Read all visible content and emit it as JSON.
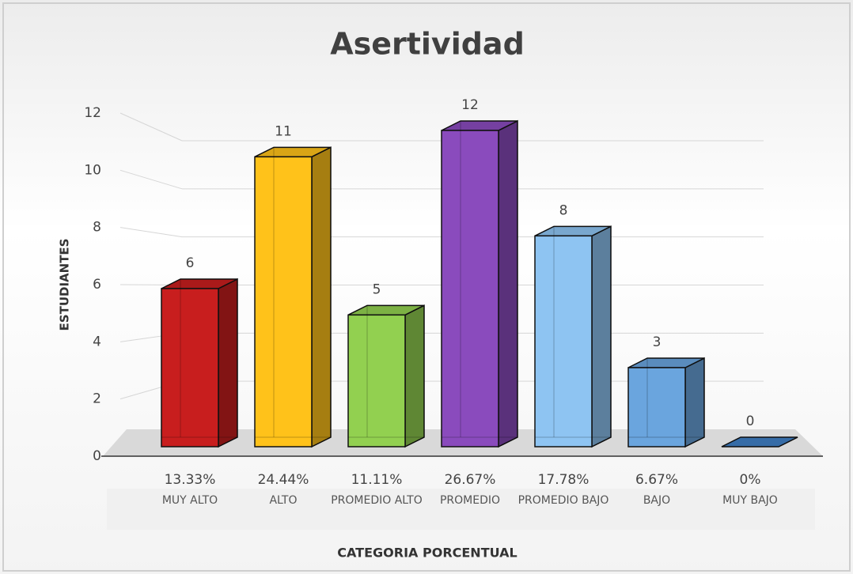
{
  "chart_data": {
    "type": "bar3d",
    "title": "Asertividad",
    "y_label": "ESTUDIANTES",
    "x_label": "CATEGORIA PORCENTUAL",
    "categories": [
      "MUY ALTO",
      "ALTO",
      "PROMEDIO ALTO",
      "PROMEDIO",
      "PROMEDIO BAJO",
      "BAJO",
      "MUY BAJO"
    ],
    "category_percent_labels": [
      "13.33%",
      "24.44%",
      "11.11%",
      "26.67%",
      "17.78%",
      "6.67%",
      "0%"
    ],
    "values": [
      6,
      11,
      5,
      12,
      8,
      3,
      0
    ],
    "colors": [
      "#c81e1e",
      "#ffc21a",
      "#92d050",
      "#8a4bbd",
      "#8ec4f2",
      "#6aa5de",
      "#3f7fc4"
    ],
    "ylim": [
      0,
      12
    ],
    "yticks": [
      0,
      2,
      4,
      6,
      8,
      10,
      12
    ],
    "grid": true
  }
}
